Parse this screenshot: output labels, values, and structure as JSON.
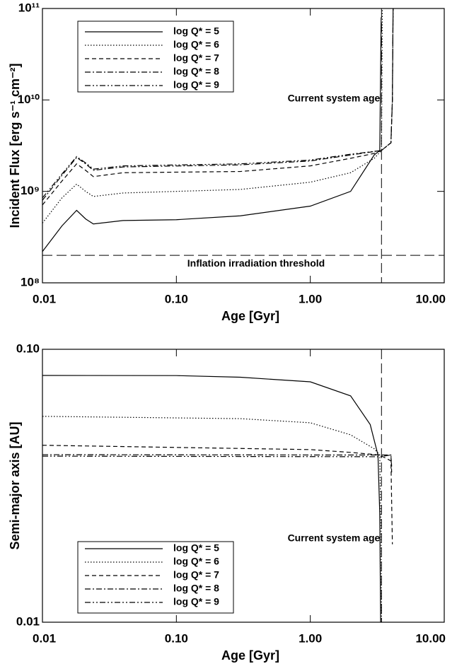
{
  "chart_data": [
    {
      "type": "line",
      "xlabel": "Age [Gyr]",
      "ylabel": "Incident Flux [erg s⁻¹ cm⁻²]",
      "xlog": true,
      "ylog": true,
      "xlim": [
        0.01,
        10
      ],
      "xticks": [
        0.01,
        {
          "value": 0.1,
          "label": "0.10"
        },
        {
          "value": 1,
          "label": "1.00"
        },
        {
          "value": 10,
          "label": "10.00"
        }
      ],
      "ylim": [
        100000000,
        100000000000
      ],
      "yticks": [
        {
          "value": 100000000,
          "label": "10⁸"
        },
        {
          "value": 1000000000,
          "label": "10⁹"
        },
        {
          "value": 10000000000,
          "label": "10¹⁰"
        },
        {
          "value": 100000000000,
          "label": "10¹¹"
        }
      ],
      "vline": 3.4,
      "vline_label": "Current system age",
      "hline": 200000000,
      "hline_label": "Inflation irradiation threshold",
      "legend": "upper left",
      "series": [
        {
          "name": "log Q* = 5",
          "color": "#000000",
          "linestyle": "solid",
          "x": [
            0.01,
            0.014,
            0.018,
            0.021,
            0.024,
            0.04,
            0.1,
            0.3,
            1.0,
            2.0,
            3.0,
            3.3,
            3.38
          ],
          "values": [
            220000000,
            420000000,
            620000000,
            500000000,
            440000000,
            480000000,
            490000000,
            540000000,
            690000000,
            1000000000,
            2500000000,
            2800000000,
            80000000000
          ]
        },
        {
          "name": "log Q* = 6",
          "color": "#000000",
          "linestyle": "dotted",
          "x": [
            0.01,
            0.014,
            0.018,
            0.021,
            0.024,
            0.04,
            0.3,
            1.0,
            2.0,
            3.0,
            3.4,
            3.45
          ],
          "values": [
            450000000,
            850000000,
            1200000000,
            1000000000,
            880000000,
            960000000,
            1050000000,
            1260000000,
            1600000000,
            2300000000,
            2800000000,
            100000000000
          ]
        },
        {
          "name": "log Q* = 7",
          "color": "#000000",
          "linestyle": "dashed",
          "x": [
            0.01,
            0.014,
            0.018,
            0.021,
            0.024,
            0.04,
            0.3,
            1.0,
            2.0,
            3.0,
            3.4,
            3.6,
            4.0,
            4.1,
            4.15
          ],
          "values": [
            710000000,
            1300000000,
            2000000000,
            1700000000,
            1450000000,
            1600000000,
            1650000000,
            1900000000,
            2300000000,
            2600000000,
            2800000000,
            3000000000,
            3400000000,
            10000000000,
            100000000000
          ]
        },
        {
          "name": "log Q* = 8",
          "color": "#000000",
          "linestyle": "dashdot",
          "x": [
            0.01,
            0.014,
            0.018,
            0.021,
            0.024,
            0.04,
            0.3,
            1.0,
            2.0,
            3.4,
            3.6,
            4.0,
            4.1,
            4.15
          ],
          "values": [
            800000000,
            1500000000,
            2350000000,
            2000000000,
            1700000000,
            1850000000,
            1950000000,
            2150000000,
            2500000000,
            2800000000,
            3000000000,
            3400000000,
            10000000000,
            100000000000
          ]
        },
        {
          "name": "log Q* = 9",
          "color": "#000000",
          "linestyle": "dashdotdot",
          "x": [
            0.01,
            0.014,
            0.018,
            0.021,
            0.024,
            0.04,
            0.3,
            1.0,
            2.0,
            3.4,
            3.6,
            4.0,
            4.1,
            4.15
          ],
          "values": [
            850000000,
            1550000000,
            2400000000,
            2050000000,
            1750000000,
            1900000000,
            2000000000,
            2200000000,
            2550000000,
            2800000000,
            3000000000,
            3400000000,
            10000000000,
            100000000000
          ]
        }
      ]
    },
    {
      "type": "line",
      "xlabel": "Age [Gyr]",
      "ylabel": "Semi-major axis [AU]",
      "xlog": true,
      "ylog": true,
      "xlim": [
        0.01,
        10
      ],
      "xticks": [
        0.01,
        {
          "value": 0.1,
          "label": "0.10"
        },
        {
          "value": 1,
          "label": "1.00"
        },
        {
          "value": 10,
          "label": "10.00"
        }
      ],
      "ylim": [
        0.01,
        0.1
      ],
      "yticks": [
        0.01,
        {
          "value": 0.1,
          "label": "0.10"
        }
      ],
      "vline": 3.4,
      "vline_label": "Current system age",
      "legend": "lower left",
      "series": [
        {
          "name": "log Q* = 5",
          "color": "#000000",
          "linestyle": "solid",
          "x": [
            0.01,
            0.1,
            0.3,
            1.0,
            2.0,
            2.8,
            3.2,
            3.3,
            3.35
          ],
          "values": [
            0.0802,
            0.0801,
            0.079,
            0.076,
            0.0675,
            0.053,
            0.041,
            0.025,
            0.01
          ]
        },
        {
          "name": "log Q* = 6",
          "color": "#000000",
          "linestyle": "dotted",
          "x": [
            0.01,
            0.3,
            1.0,
            2.0,
            3.0,
            3.3,
            3.38,
            3.4
          ],
          "values": [
            0.0568,
            0.0557,
            0.0538,
            0.0486,
            0.0432,
            0.041,
            0.02,
            0.01
          ]
        },
        {
          "name": "log Q* = 7",
          "color": "#000000",
          "linestyle": "dashed",
          "x": [
            0.01,
            1.0,
            2.0,
            3.3,
            4.0,
            4.1
          ],
          "values": [
            0.0445,
            0.0429,
            0.0419,
            0.041,
            0.039,
            0.0193
          ]
        },
        {
          "name": "log Q* = 8",
          "color": "#000000",
          "linestyle": "dashdot",
          "x": [
            0.01,
            1.0,
            3.3,
            4.0,
            4.05
          ],
          "values": [
            0.0411,
            0.041,
            0.041,
            0.041,
            0.0354
          ]
        },
        {
          "name": "log Q* = 9",
          "color": "#000000",
          "linestyle": "dashdotdot",
          "x": [
            0.01,
            3.3,
            4.0,
            4.05
          ],
          "values": [
            0.0406,
            0.0404,
            0.041,
            0.0372
          ]
        }
      ]
    }
  ]
}
